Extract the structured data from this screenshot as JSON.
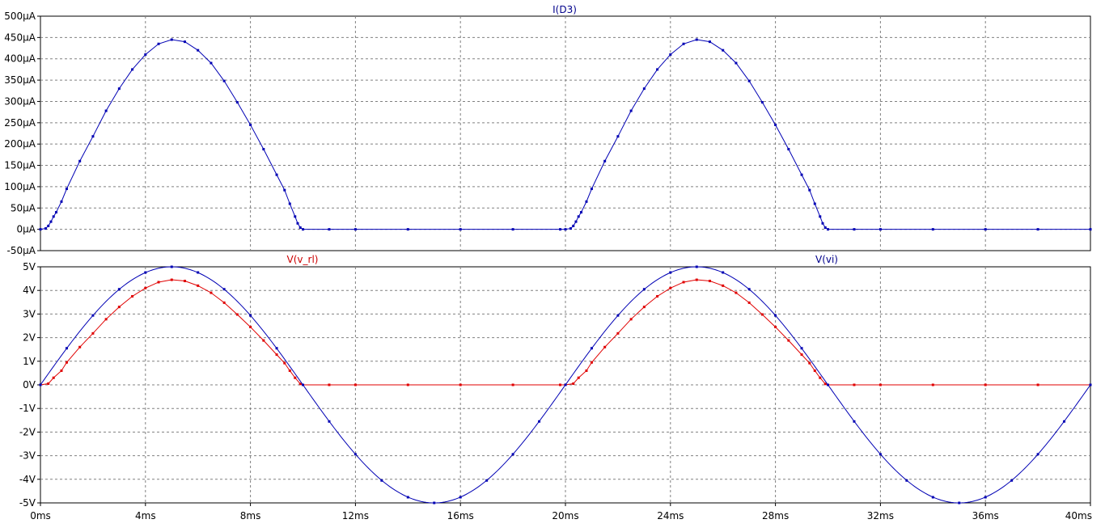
{
  "colors": {
    "background": "#ffffff",
    "grid": "#808080",
    "axis": "#000000",
    "tick_text": "#000000",
    "blue_trace": "#0000b4",
    "red_trace": "#e00000",
    "blue_title": "#00008b",
    "red_title": "#cc0000"
  },
  "chart_data": [
    {
      "type": "line",
      "title": "I(D3)",
      "x_unit": "ms",
      "y_unit": "µA",
      "xlim": [
        0,
        40
      ],
      "ylim": [
        -50,
        500
      ],
      "grid": true,
      "x_ticks": [
        "0ms",
        "4ms",
        "8ms",
        "12ms",
        "16ms",
        "20ms",
        "24ms",
        "28ms",
        "32ms",
        "36ms",
        "40ms"
      ],
      "y_ticks": [
        "500µA",
        "450µA",
        "400µA",
        "350µA",
        "300µA",
        "250µA",
        "200µA",
        "150µA",
        "100µA",
        "50µA",
        "0µA",
        "-50µA"
      ],
      "series": [
        {
          "name": "I(D3)",
          "color": "blue",
          "points": [
            [
              0,
              0
            ],
            [
              0.2,
              2
            ],
            [
              0.3,
              8
            ],
            [
              0.4,
              18
            ],
            [
              0.5,
              30
            ],
            [
              0.6,
              40
            ],
            [
              0.8,
              65
            ],
            [
              1.0,
              95
            ],
            [
              1.5,
              160
            ],
            [
              2.0,
              218
            ],
            [
              2.5,
              278
            ],
            [
              3.0,
              330
            ],
            [
              3.5,
              375
            ],
            [
              4.0,
              410
            ],
            [
              4.5,
              435
            ],
            [
              5.0,
              445
            ],
            [
              5.5,
              440
            ],
            [
              6.0,
              420
            ],
            [
              6.5,
              390
            ],
            [
              7.0,
              348
            ],
            [
              7.5,
              298
            ],
            [
              8.0,
              245
            ],
            [
              8.5,
              188
            ],
            [
              9.0,
              128
            ],
            [
              9.3,
              92
            ],
            [
              9.5,
              60
            ],
            [
              9.7,
              30
            ],
            [
              9.8,
              14
            ],
            [
              9.9,
              4
            ],
            [
              10.0,
              0
            ],
            [
              11,
              0
            ],
            [
              12,
              0
            ],
            [
              14,
              0
            ],
            [
              16,
              0
            ],
            [
              18,
              0
            ],
            [
              19.8,
              0
            ],
            [
              20.0,
              0
            ],
            [
              20.2,
              2
            ],
            [
              20.3,
              8
            ],
            [
              20.4,
              18
            ],
            [
              20.5,
              30
            ],
            [
              20.6,
              40
            ],
            [
              20.8,
              65
            ],
            [
              21.0,
              95
            ],
            [
              21.5,
              160
            ],
            [
              22.0,
              218
            ],
            [
              22.5,
              278
            ],
            [
              23.0,
              330
            ],
            [
              23.5,
              375
            ],
            [
              24.0,
              410
            ],
            [
              24.5,
              435
            ],
            [
              25.0,
              445
            ],
            [
              25.5,
              440
            ],
            [
              26.0,
              420
            ],
            [
              26.5,
              390
            ],
            [
              27.0,
              348
            ],
            [
              27.5,
              298
            ],
            [
              28.0,
              245
            ],
            [
              28.5,
              188
            ],
            [
              29.0,
              128
            ],
            [
              29.3,
              92
            ],
            [
              29.5,
              60
            ],
            [
              29.7,
              30
            ],
            [
              29.8,
              14
            ],
            [
              29.9,
              4
            ],
            [
              30.0,
              0
            ],
            [
              31,
              0
            ],
            [
              32,
              0
            ],
            [
              34,
              0
            ],
            [
              36,
              0
            ],
            [
              38,
              0
            ],
            [
              40,
              0
            ]
          ]
        }
      ]
    },
    {
      "type": "line",
      "title": "",
      "x_unit": "ms",
      "y_unit": "V",
      "xlim": [
        0,
        40
      ],
      "ylim": [
        -5,
        5
      ],
      "grid": true,
      "x_ticks": [
        "0ms",
        "4ms",
        "8ms",
        "12ms",
        "16ms",
        "20ms",
        "24ms",
        "28ms",
        "32ms",
        "36ms",
        "40ms"
      ],
      "y_ticks": [
        "5V",
        "4V",
        "3V",
        "2V",
        "1V",
        "0V",
        "-1V",
        "-2V",
        "-3V",
        "-4V",
        "-5V"
      ],
      "series": [
        {
          "name": "V(v_rl)",
          "color": "red",
          "points": [
            [
              0,
              0
            ],
            [
              0.3,
              0.05
            ],
            [
              0.5,
              0.3
            ],
            [
              0.8,
              0.6
            ],
            [
              1.0,
              0.95
            ],
            [
              1.5,
              1.6
            ],
            [
              2.0,
              2.18
            ],
            [
              2.5,
              2.78
            ],
            [
              3.0,
              3.3
            ],
            [
              3.5,
              3.75
            ],
            [
              4.0,
              4.1
            ],
            [
              4.5,
              4.35
            ],
            [
              5.0,
              4.45
            ],
            [
              5.5,
              4.4
            ],
            [
              6.0,
              4.2
            ],
            [
              6.5,
              3.9
            ],
            [
              7.0,
              3.48
            ],
            [
              7.5,
              2.98
            ],
            [
              8.0,
              2.45
            ],
            [
              8.5,
              1.88
            ],
            [
              9.0,
              1.28
            ],
            [
              9.3,
              0.92
            ],
            [
              9.5,
              0.6
            ],
            [
              9.7,
              0.3
            ],
            [
              9.9,
              0.04
            ],
            [
              10.0,
              0
            ],
            [
              11,
              0
            ],
            [
              12,
              0
            ],
            [
              14,
              0
            ],
            [
              16,
              0
            ],
            [
              18,
              0
            ],
            [
              19.8,
              0
            ],
            [
              20.0,
              0
            ],
            [
              20.3,
              0.05
            ],
            [
              20.5,
              0.3
            ],
            [
              20.8,
              0.6
            ],
            [
              21.0,
              0.95
            ],
            [
              21.5,
              1.6
            ],
            [
              22.0,
              2.18
            ],
            [
              22.5,
              2.78
            ],
            [
              23.0,
              3.3
            ],
            [
              23.5,
              3.75
            ],
            [
              24.0,
              4.1
            ],
            [
              24.5,
              4.35
            ],
            [
              25.0,
              4.45
            ],
            [
              25.5,
              4.4
            ],
            [
              26.0,
              4.2
            ],
            [
              26.5,
              3.9
            ],
            [
              27.0,
              3.48
            ],
            [
              27.5,
              2.98
            ],
            [
              28.0,
              2.45
            ],
            [
              28.5,
              1.88
            ],
            [
              29.0,
              1.28
            ],
            [
              29.3,
              0.92
            ],
            [
              29.5,
              0.6
            ],
            [
              29.7,
              0.3
            ],
            [
              29.9,
              0.04
            ],
            [
              30.0,
              0
            ],
            [
              31,
              0
            ],
            [
              32,
              0
            ],
            [
              34,
              0
            ],
            [
              36,
              0
            ],
            [
              38,
              0
            ],
            [
              40,
              0
            ]
          ]
        },
        {
          "name": "V(vi)",
          "color": "blue",
          "amplitude": 5,
          "period_ms": 20,
          "samples": [
            [
              0,
              0
            ],
            [
              1,
              1.55
            ],
            [
              2,
              2.94
            ],
            [
              3,
              4.05
            ],
            [
              4,
              4.76
            ],
            [
              5,
              5
            ],
            [
              6,
              4.76
            ],
            [
              7,
              4.05
            ],
            [
              8,
              2.94
            ],
            [
              9,
              1.55
            ],
            [
              10,
              0
            ],
            [
              11,
              -1.55
            ],
            [
              12,
              -2.94
            ],
            [
              13,
              -4.05
            ],
            [
              14,
              -4.76
            ],
            [
              15,
              -5
            ],
            [
              16,
              -4.76
            ],
            [
              17,
              -4.05
            ],
            [
              18,
              -2.94
            ],
            [
              19,
              -1.55
            ],
            [
              20,
              0
            ],
            [
              21,
              1.55
            ],
            [
              22,
              2.94
            ],
            [
              23,
              4.05
            ],
            [
              24,
              4.76
            ],
            [
              25,
              5
            ],
            [
              26,
              4.76
            ],
            [
              27,
              4.05
            ],
            [
              28,
              2.94
            ],
            [
              29,
              1.55
            ],
            [
              30,
              0
            ],
            [
              31,
              -1.55
            ],
            [
              32,
              -2.94
            ],
            [
              33,
              -4.05
            ],
            [
              34,
              -4.76
            ],
            [
              35,
              -5
            ],
            [
              36,
              -4.76
            ],
            [
              37,
              -4.05
            ],
            [
              38,
              -2.94
            ],
            [
              39,
              -1.55
            ],
            [
              40,
              0
            ]
          ]
        }
      ]
    }
  ]
}
